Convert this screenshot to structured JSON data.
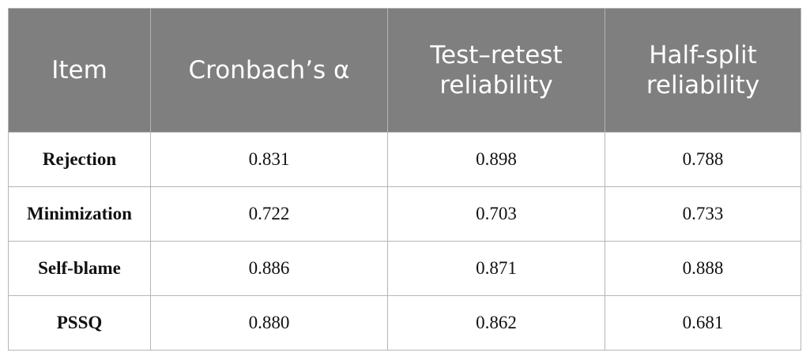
{
  "table": {
    "header": [
      "Item",
      "Cronbach’s α",
      "Test–retest reliability",
      "Half-split reliability"
    ],
    "rows": [
      [
        "Rejection",
        "0.831",
        "0.898",
        "0.788"
      ],
      [
        "Minimization",
        "0.722",
        "0.703",
        "0.733"
      ],
      [
        "Self-blame",
        "0.886",
        "0.871",
        "0.888"
      ],
      [
        "PSSQ",
        "0.880",
        "0.862",
        "0.681"
      ]
    ]
  }
}
